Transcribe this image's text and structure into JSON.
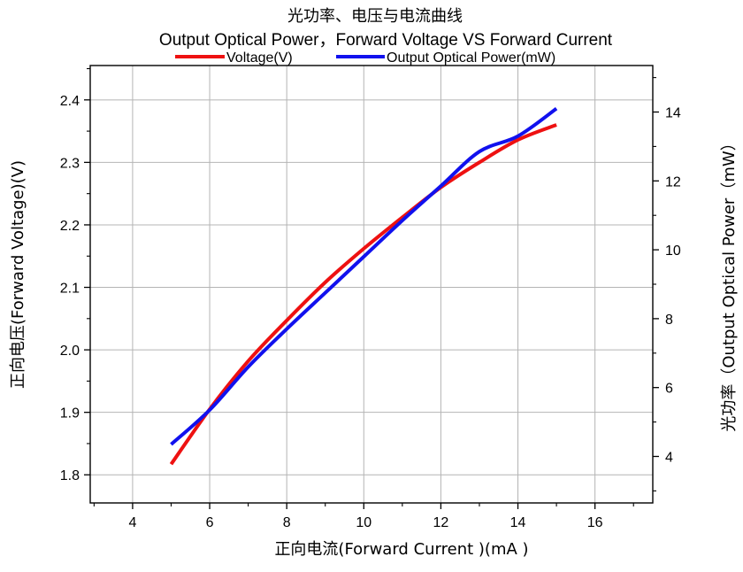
{
  "chart_data": {
    "type": "line",
    "title": "光功率、电压与电流曲线",
    "subtitle": "Output Optical Power，Forward Voltage VS Forward Current",
    "xlabel": "正向电流(Forward Current )(mA )",
    "ylabel_left": "正向电压(Forward Voltage)(V)",
    "ylabel_right": "光功率（Output Optical Power（mW）",
    "xlim": [
      2.9,
      17.5
    ],
    "ylim_left": [
      1.755,
      2.455
    ],
    "ylim_right": [
      2.65,
      15.35
    ],
    "x_ticks": [
      4,
      6,
      8,
      10,
      12,
      14,
      16
    ],
    "x_tick_labels": [
      "4",
      "6",
      "8",
      "10",
      "12",
      "14",
      "16"
    ],
    "y_left_ticks": [
      1.8,
      1.9,
      2.0,
      2.1,
      2.2,
      2.3,
      2.4
    ],
    "y_left_tick_labels": [
      "1.8",
      "1.9",
      "2.0",
      "2.1",
      "2.2",
      "2.3",
      "2.4"
    ],
    "y_right_ticks": [
      4,
      6,
      8,
      10,
      12,
      14
    ],
    "y_right_tick_labels": [
      "4",
      "6",
      "8",
      "10",
      "12",
      "14"
    ],
    "grid": true,
    "legend_position": "top",
    "series": [
      {
        "name": "Voltage(V)",
        "axis": "left",
        "color": "#ee1111",
        "x": [
          5,
          6,
          7,
          8,
          9,
          10,
          11,
          12,
          13,
          14,
          15
        ],
        "y": [
          1.817,
          1.905,
          1.982,
          2.047,
          2.108,
          2.162,
          2.212,
          2.26,
          2.3,
          2.336,
          2.36
        ]
      },
      {
        "name": "Output Optical Power(mW)",
        "axis": "right",
        "color": "#1111ee",
        "x": [
          5,
          6,
          7,
          8,
          9,
          10,
          11,
          12,
          13,
          14,
          15
        ],
        "y": [
          4.35,
          5.35,
          6.6,
          7.7,
          8.75,
          9.8,
          10.85,
          11.85,
          12.85,
          13.3,
          14.1
        ]
      }
    ]
  }
}
